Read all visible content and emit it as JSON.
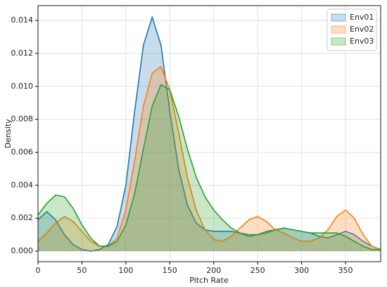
{
  "chart_data": {
    "type": "kde",
    "xlabel": "Pitch Rate",
    "ylabel": "Density",
    "x": [
      0,
      10,
      20,
      30,
      40,
      50,
      60,
      70,
      80,
      90,
      100,
      110,
      120,
      130,
      140,
      150,
      160,
      170,
      180,
      190,
      200,
      210,
      220,
      230,
      240,
      250,
      260,
      270,
      280,
      290,
      300,
      310,
      320,
      330,
      340,
      350,
      360,
      370,
      380,
      390
    ],
    "series": [
      {
        "name": "Env01",
        "color": "#1f77b4",
        "values": [
          0.0019,
          0.0024,
          0.0019,
          0.001,
          0.0004,
          0.0001,
          0.0,
          0.0001,
          0.0004,
          0.0015,
          0.004,
          0.0085,
          0.0125,
          0.0142,
          0.0125,
          0.0085,
          0.005,
          0.0028,
          0.0017,
          0.0013,
          0.0012,
          0.0012,
          0.0012,
          0.0011,
          0.001,
          0.001,
          0.0011,
          0.0013,
          0.0014,
          0.0013,
          0.0012,
          0.0011,
          0.0009,
          0.0008,
          0.001,
          0.0012,
          0.001,
          0.0006,
          0.0003,
          0.0001
        ]
      },
      {
        "name": "Env02",
        "color": "#ff7f0e",
        "values": [
          0.0006,
          0.0011,
          0.0017,
          0.0021,
          0.0018,
          0.0012,
          0.0006,
          0.0003,
          0.0003,
          0.0008,
          0.0025,
          0.0055,
          0.0088,
          0.0108,
          0.0112,
          0.0098,
          0.0072,
          0.0045,
          0.0025,
          0.0013,
          0.0007,
          0.0006,
          0.0009,
          0.0014,
          0.0019,
          0.0021,
          0.0018,
          0.0013,
          0.0011,
          0.0008,
          0.0006,
          0.0006,
          0.0008,
          0.0013,
          0.0021,
          0.0025,
          0.002,
          0.001,
          0.0003,
          0.0001
        ]
      },
      {
        "name": "Env03",
        "color": "#2ca02c",
        "values": [
          0.0022,
          0.0029,
          0.0034,
          0.0033,
          0.0026,
          0.0016,
          0.0008,
          0.0003,
          0.0003,
          0.0006,
          0.0016,
          0.0035,
          0.0062,
          0.0088,
          0.0101,
          0.0098,
          0.0082,
          0.0062,
          0.0045,
          0.0033,
          0.0025,
          0.0019,
          0.0014,
          0.0011,
          0.0009,
          0.001,
          0.0012,
          0.0013,
          0.0014,
          0.0013,
          0.0012,
          0.0011,
          0.0011,
          0.0011,
          0.0011,
          0.0009,
          0.0006,
          0.0003,
          0.0001,
          0.0001
        ]
      }
    ],
    "xlim": [
      0,
      390
    ],
    "ylim": [
      -0.00064,
      0.0149
    ],
    "xticks": [
      0,
      50,
      100,
      150,
      200,
      250,
      300,
      350
    ],
    "yticks": [
      {
        "value": 0,
        "label": "0.000"
      },
      {
        "value": 0.002,
        "label": "0.002"
      },
      {
        "value": 0.004,
        "label": "0.004"
      },
      {
        "value": 0.006,
        "label": "0.006"
      },
      {
        "value": 0.008,
        "label": "0.008"
      },
      {
        "value": 0.01,
        "label": "0.010"
      },
      {
        "value": 0.012,
        "label": "0.012"
      },
      {
        "value": 0.014,
        "label": "0.014"
      }
    ],
    "grid": true,
    "legend": "upper-right"
  }
}
